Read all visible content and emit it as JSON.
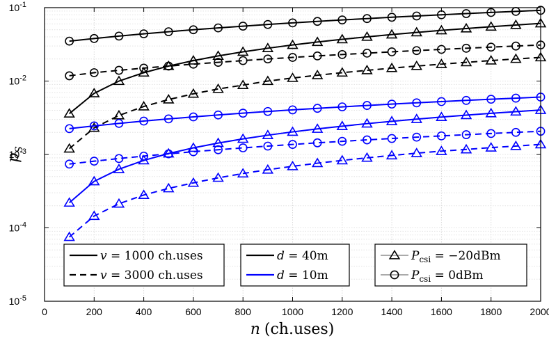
{
  "chart_data": {
    "type": "line",
    "x_scale": "linear",
    "y_scale": "log",
    "xlabel": {
      "var": "n",
      "unit": "(ch.uses)"
    },
    "ylabel": {
      "base": "p",
      "sub": "S"
    },
    "xlim": [
      0,
      2000
    ],
    "ylim": [
      1e-05,
      0.1
    ],
    "grid": true,
    "x_ticks": [
      {
        "value": 0,
        "label": "0"
      },
      {
        "value": 200,
        "label": "200"
      },
      {
        "value": 400,
        "label": "400"
      },
      {
        "value": 600,
        "label": "600"
      },
      {
        "value": 800,
        "label": "800"
      },
      {
        "value": 1000,
        "label": "1000"
      },
      {
        "value": 1200,
        "label": "1200"
      },
      {
        "value": 1400,
        "label": "1400"
      },
      {
        "value": 1600,
        "label": "1600"
      },
      {
        "value": 1800,
        "label": "1800"
      },
      {
        "value": 2000,
        "label": "2000"
      }
    ],
    "y_ticks": [
      {
        "value": 1e-05,
        "base": "10",
        "exp": "-5"
      },
      {
        "value": 0.0001,
        "base": "10",
        "exp": "-4"
      },
      {
        "value": 0.001,
        "base": "10",
        "exp": "-3"
      },
      {
        "value": 0.01,
        "base": "10",
        "exp": "-2"
      },
      {
        "value": 0.1,
        "base": "10",
        "exp": "-1"
      }
    ],
    "x": [
      100,
      200,
      300,
      400,
      500,
      600,
      700,
      800,
      900,
      1000,
      1100,
      1200,
      1300,
      1400,
      1500,
      1600,
      1700,
      1800,
      1900,
      2000
    ],
    "series": [
      {
        "name": "d=40m, v=1000 ch.uses, Pcsi=0dBm",
        "color": "#000000",
        "dash": "solid",
        "marker": "circle",
        "values": [
          0.035,
          0.038,
          0.041,
          0.044,
          0.047,
          0.05,
          0.053,
          0.056,
          0.059,
          0.062,
          0.065,
          0.068,
          0.071,
          0.074,
          0.077,
          0.08,
          0.083,
          0.086,
          0.089,
          0.092
        ]
      },
      {
        "name": "d=40m, v=1000 ch.uses, Pcsi=-20dBm",
        "color": "#000000",
        "dash": "solid",
        "marker": "triangle",
        "values": [
          0.0036,
          0.0068,
          0.01,
          0.013,
          0.016,
          0.019,
          0.022,
          0.025,
          0.028,
          0.031,
          0.034,
          0.037,
          0.04,
          0.043,
          0.046,
          0.049,
          0.052,
          0.055,
          0.058,
          0.061
        ]
      },
      {
        "name": "d=40m, v=3000 ch.uses, Pcsi=0dBm",
        "color": "#000000",
        "dash": "dashed",
        "marker": "circle",
        "values": [
          0.0118,
          0.013,
          0.014,
          0.015,
          0.016,
          0.017,
          0.018,
          0.019,
          0.02,
          0.021,
          0.022,
          0.023,
          0.024,
          0.025,
          0.026,
          0.027,
          0.028,
          0.029,
          0.03,
          0.031
        ]
      },
      {
        "name": "d=40m, v=3000 ch.uses, Pcsi=-20dBm",
        "color": "#000000",
        "dash": "dashed",
        "marker": "triangle",
        "values": [
          0.0012,
          0.0023,
          0.0034,
          0.0045,
          0.0056,
          0.0067,
          0.0078,
          0.0088,
          0.01,
          0.011,
          0.012,
          0.013,
          0.014,
          0.015,
          0.016,
          0.017,
          0.018,
          0.019,
          0.02,
          0.021
        ]
      },
      {
        "name": "d=10m, v=1000 ch.uses, Pcsi=0dBm",
        "color": "#0000ff",
        "dash": "solid",
        "marker": "circle",
        "values": [
          0.00225,
          0.00245,
          0.00265,
          0.00285,
          0.00305,
          0.00325,
          0.00345,
          0.00365,
          0.00385,
          0.00405,
          0.00425,
          0.00445,
          0.00465,
          0.00485,
          0.00505,
          0.00525,
          0.00545,
          0.00565,
          0.00585,
          0.00605
        ]
      },
      {
        "name": "d=10m, v=1000 ch.uses, Pcsi=-20dBm",
        "color": "#0000ff",
        "dash": "solid",
        "marker": "triangle",
        "values": [
          0.00022,
          0.00043,
          0.00063,
          0.00083,
          0.00103,
          0.00123,
          0.00143,
          0.00163,
          0.00183,
          0.00203,
          0.00223,
          0.00243,
          0.00263,
          0.00283,
          0.00303,
          0.00323,
          0.00343,
          0.00363,
          0.00383,
          0.00403
        ]
      },
      {
        "name": "d=10m, v=3000 ch.uses, Pcsi=0dBm",
        "color": "#0000ff",
        "dash": "dashed",
        "marker": "circle",
        "values": [
          0.00074,
          0.00081,
          0.00088,
          0.00095,
          0.00102,
          0.00109,
          0.00116,
          0.00123,
          0.0013,
          0.00137,
          0.00144,
          0.00151,
          0.00158,
          0.00165,
          0.00172,
          0.00179,
          0.00186,
          0.00193,
          0.002,
          0.00207
        ]
      },
      {
        "name": "d=10m, v=3000 ch.uses, Pcsi=-20dBm",
        "color": "#0000ff",
        "dash": "dashed",
        "marker": "triangle",
        "values": [
          7.5e-05,
          0.000145,
          0.000213,
          0.00028,
          0.000345,
          0.00041,
          0.00048,
          0.00055,
          0.00062,
          0.00069,
          0.00076,
          0.00083,
          0.0009,
          0.00097,
          0.00104,
          0.00111,
          0.00117,
          0.00124,
          0.0013,
          0.00137
        ]
      }
    ],
    "legends": [
      {
        "items": [
          {
            "dash": "solid",
            "prefix": "v",
            "text": " = 1000 ch.uses"
          },
          {
            "dash": "dashed",
            "prefix": "v",
            "text": " = 3000 ch.uses"
          }
        ]
      },
      {
        "items": [
          {
            "dash": "solid",
            "color": "#000000",
            "prefix": "d",
            "text": " = 40m"
          },
          {
            "dash": "solid",
            "color": "#0000ff",
            "prefix": "d",
            "text": " = 10m"
          }
        ]
      },
      {
        "items": [
          {
            "marker": "triangle",
            "prefix": "P",
            "sub": "csi",
            "text": " = −20dBm"
          },
          {
            "marker": "circle",
            "prefix": "P",
            "sub": "csi",
            "text": " =       0dBm"
          }
        ]
      }
    ]
  }
}
